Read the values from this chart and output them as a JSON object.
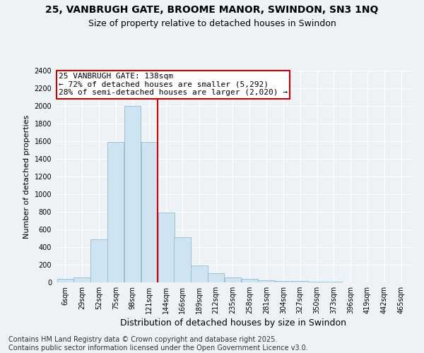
{
  "title": "25, VANBRUGH GATE, BROOME MANOR, SWINDON, SN3 1NQ",
  "subtitle": "Size of property relative to detached houses in Swindon",
  "xlabel": "Distribution of detached houses by size in Swindon",
  "ylabel": "Number of detached properties",
  "bar_color": "#cfe3f1",
  "bar_edge_color": "#8cbdd8",
  "annotation_box_color": "#ffffff",
  "annotation_border_color": "#cc0000",
  "vline_color": "#cc0000",
  "annotation_lines": [
    "25 VANBRUGH GATE: 138sqm",
    "← 72% of detached houses are smaller (5,292)",
    "28% of semi-detached houses are larger (2,020) →"
  ],
  "categories": [
    "6sqm",
    "29sqm",
    "52sqm",
    "75sqm",
    "98sqm",
    "121sqm",
    "144sqm",
    "166sqm",
    "189sqm",
    "212sqm",
    "235sqm",
    "258sqm",
    "281sqm",
    "304sqm",
    "327sqm",
    "350sqm",
    "373sqm",
    "396sqm",
    "419sqm",
    "442sqm",
    "465sqm"
  ],
  "bin_left_edges": [
    6,
    29,
    52,
    75,
    98,
    121,
    144,
    166,
    189,
    212,
    235,
    258,
    281,
    304,
    327,
    350,
    373,
    396,
    419,
    442,
    465
  ],
  "bin_width": 23,
  "values": [
    40,
    60,
    490,
    1590,
    2000,
    1590,
    790,
    510,
    195,
    105,
    60,
    40,
    25,
    18,
    13,
    9,
    6,
    4,
    3,
    2,
    1
  ],
  "vline_x_data": 144,
  "ylim": [
    0,
    2400
  ],
  "yticks": [
    0,
    200,
    400,
    600,
    800,
    1000,
    1200,
    1400,
    1600,
    1800,
    2000,
    2200,
    2400
  ],
  "background_color": "#edf2f7",
  "grid_color": "#ffffff",
  "footer": "Contains HM Land Registry data © Crown copyright and database right 2025.\nContains public sector information licensed under the Open Government Licence v3.0.",
  "title_fontsize": 10,
  "subtitle_fontsize": 9,
  "ylabel_fontsize": 8,
  "xlabel_fontsize": 9,
  "tick_fontsize": 7,
  "annotation_fontsize": 8,
  "footer_fontsize": 7
}
